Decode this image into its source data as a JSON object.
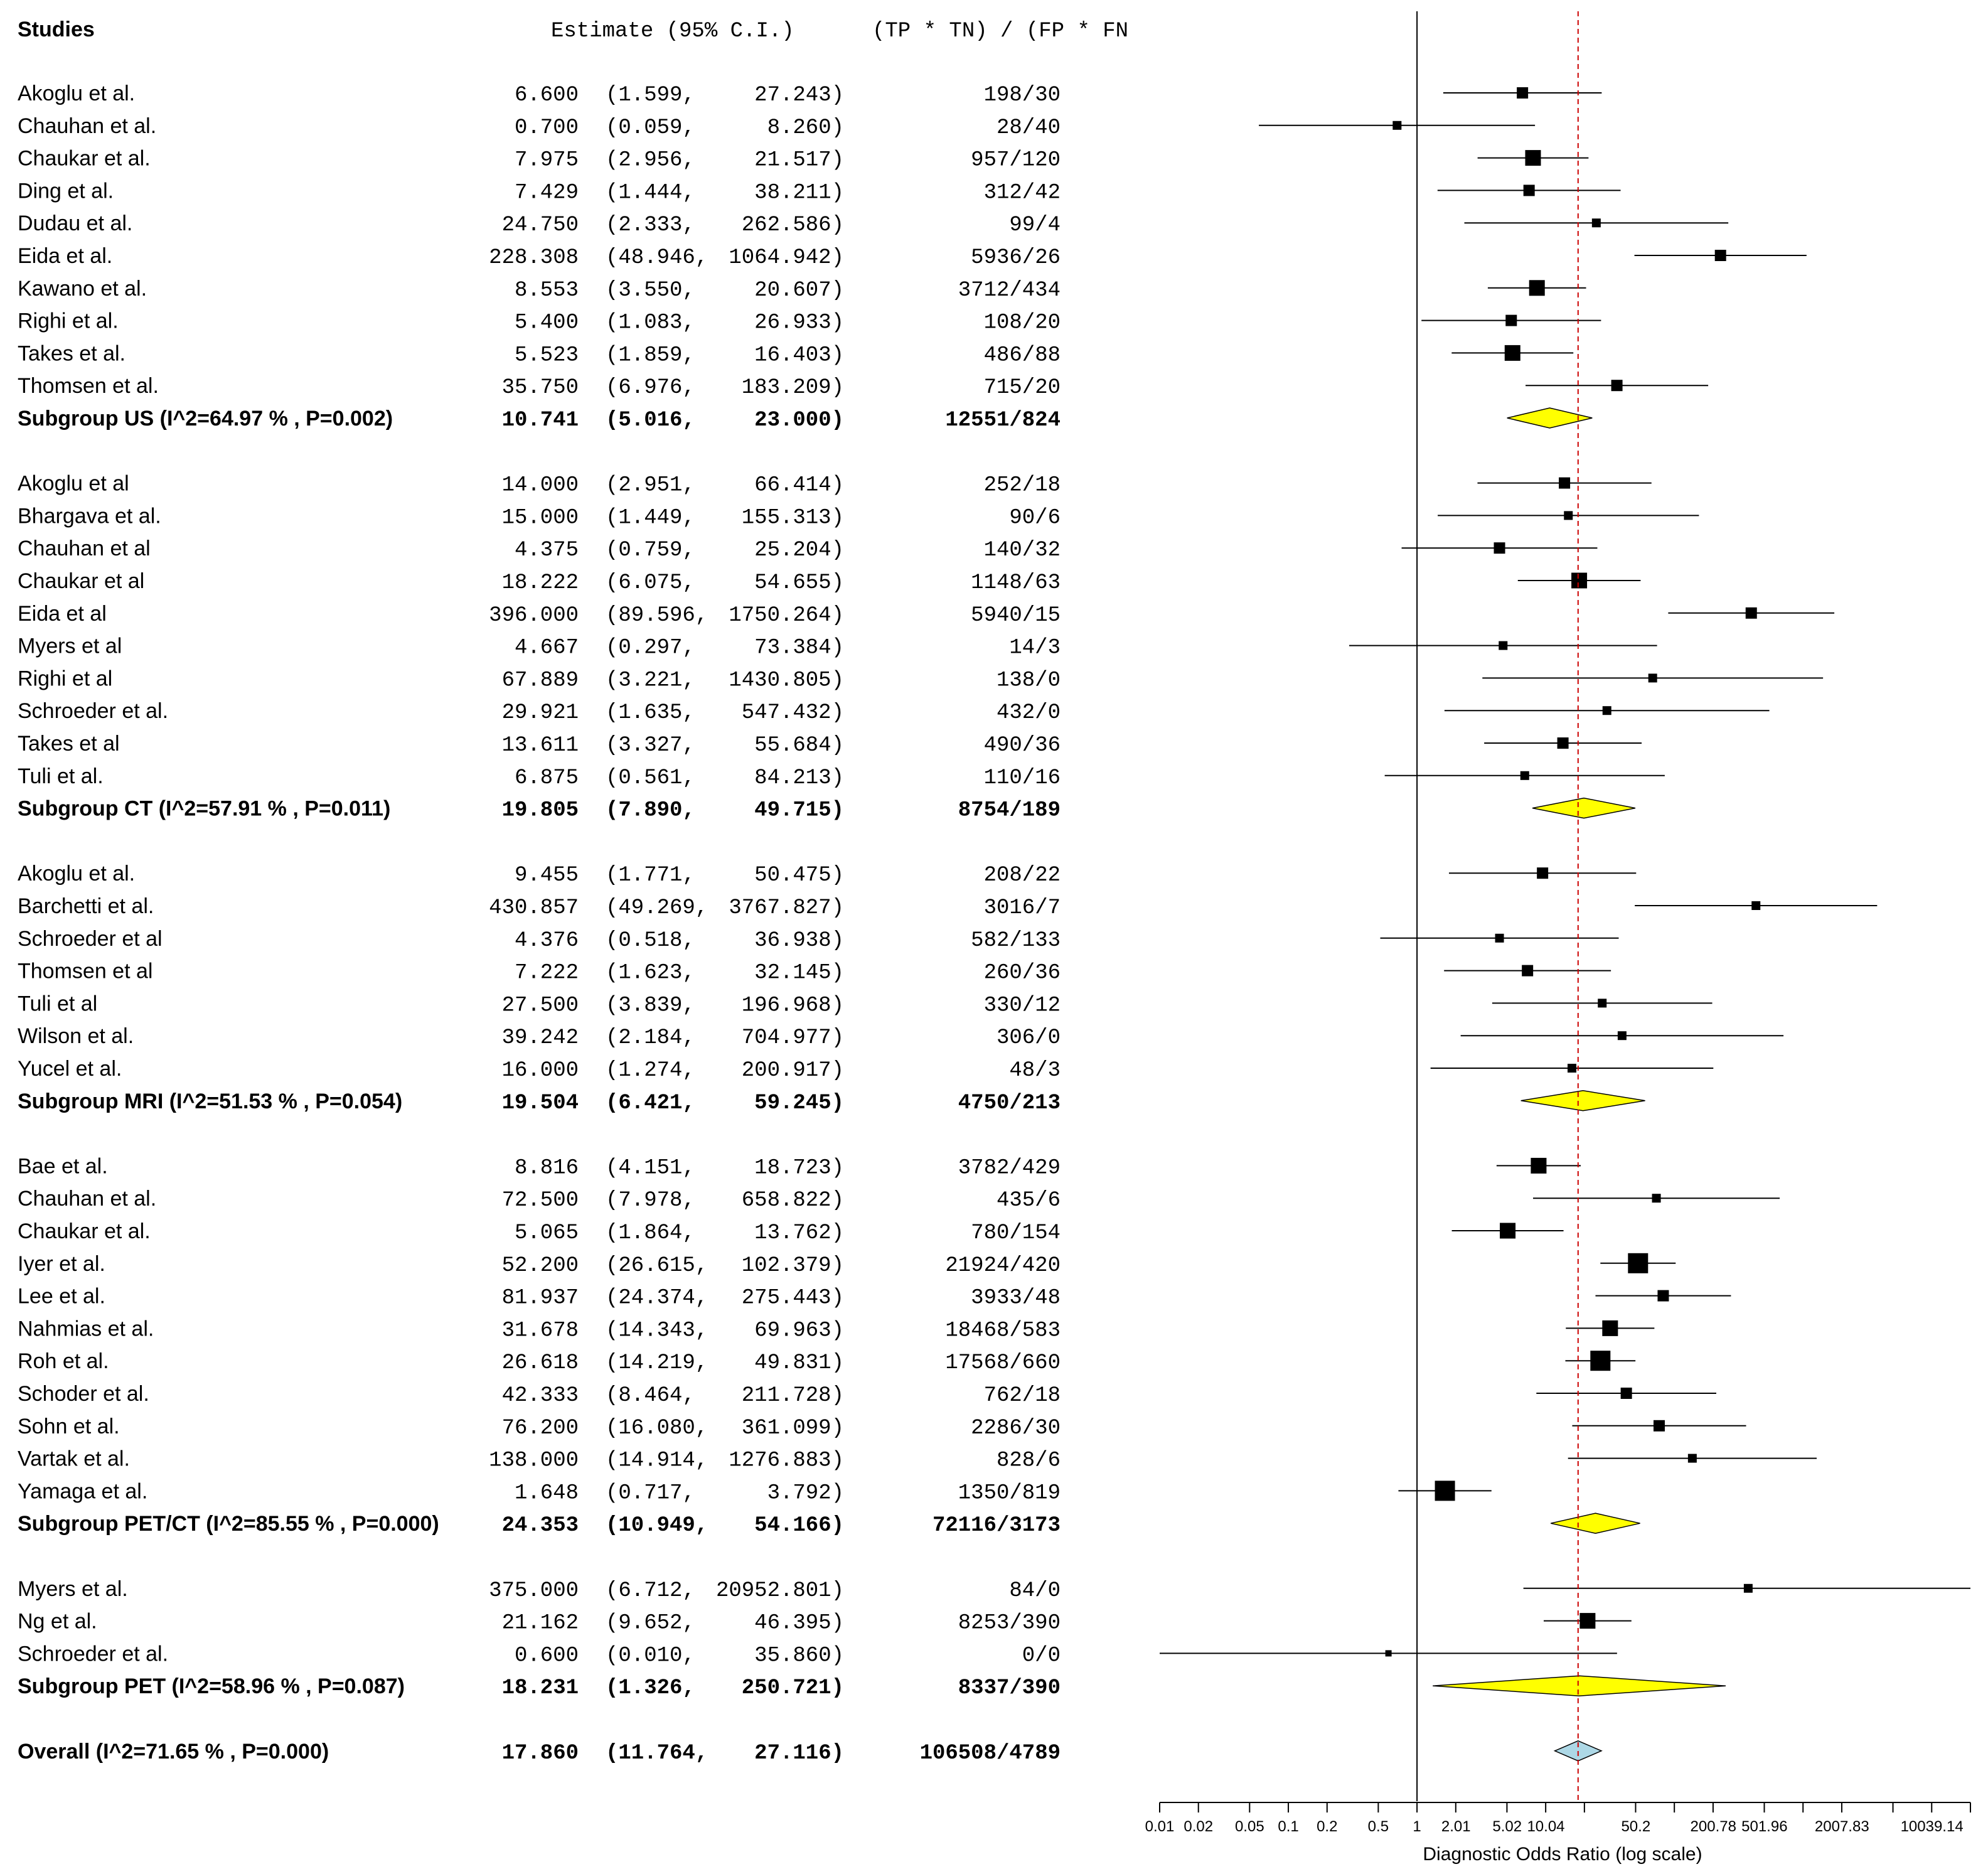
{
  "chart_data": {
    "type": "forest",
    "headers": {
      "studies": "Studies",
      "estimate": "Estimate (95% C.I.)",
      "ratio": "(TP * TN) / (FP * FN"
    },
    "xlabel": "Diagnostic Odds Ratio (log scale)",
    "xticks": [
      "0.01",
      "0.02",
      "0.05",
      "0.1",
      "0.2",
      "0.5",
      "1",
      "2.01",
      "5.02",
      "10.04",
      "50.2",
      "200.78",
      "501.96",
      "2007.83",
      "10039.14"
    ],
    "xlim": [
      0.01,
      20000
    ],
    "reference_line": 1,
    "pooled_line": 17.86,
    "groups": [
      {
        "studies": [
          {
            "name": "Akoglu et al.",
            "est": "6.600",
            "lo": "(1.599,",
            "hi": "27.243)",
            "ratio": "198/30",
            "w": 2
          },
          {
            "name": "Chauhan et al.",
            "est": "0.700",
            "lo": "(0.059,",
            "hi": "8.260)",
            "ratio": "28/40",
            "w": 1
          },
          {
            "name": "Chaukar et al.",
            "est": "7.975",
            "lo": "(2.956,",
            "hi": "21.517)",
            "ratio": "957/120",
            "w": 3
          },
          {
            "name": "Ding et al.",
            "est": "7.429",
            "lo": "(1.444,",
            "hi": "38.211)",
            "ratio": "312/42",
            "w": 2
          },
          {
            "name": "Dudau et al.",
            "est": "24.750",
            "lo": "(2.333,",
            "hi": "262.586)",
            "ratio": "99/4",
            "w": 1
          },
          {
            "name": "Eida et al.",
            "est": "228.308",
            "lo": "(48.946,",
            "hi": "1064.942)",
            "ratio": "5936/26",
            "w": 2
          },
          {
            "name": "Kawano et al.",
            "est": "8.553",
            "lo": "(3.550,",
            "hi": "20.607)",
            "ratio": "3712/434",
            "w": 3
          },
          {
            "name": "Righi et al.",
            "est": "5.400",
            "lo": "(1.083,",
            "hi": "26.933)",
            "ratio": "108/20",
            "w": 2
          },
          {
            "name": "Takes et al.",
            "est": "5.523",
            "lo": "(1.859,",
            "hi": "16.403)",
            "ratio": "486/88",
            "w": 3
          },
          {
            "name": "Thomsen et al.",
            "est": "35.750",
            "lo": "(6.976,",
            "hi": "183.209)",
            "ratio": "715/20",
            "w": 2
          }
        ],
        "summary": {
          "name": "Subgroup US (I^2=64.97 % , P=0.002)",
          "est": "10.741",
          "lo": "(5.016,",
          "hi": "23.000)",
          "ratio": "12551/824"
        }
      },
      {
        "studies": [
          {
            "name": "Akoglu et al",
            "est": "14.000",
            "lo": "(2.951,",
            "hi": "66.414)",
            "ratio": "252/18",
            "w": 2
          },
          {
            "name": "Bhargava et al.",
            "est": "15.000",
            "lo": "(1.449,",
            "hi": "155.313)",
            "ratio": "90/6",
            "w": 1
          },
          {
            "name": "Chauhan et al",
            "est": "4.375",
            "lo": "(0.759,",
            "hi": "25.204)",
            "ratio": "140/32",
            "w": 2
          },
          {
            "name": "Chaukar et al",
            "est": "18.222",
            "lo": "(6.075,",
            "hi": "54.655)",
            "ratio": "1148/63",
            "w": 3
          },
          {
            "name": "Eida et al",
            "est": "396.000",
            "lo": "(89.596,",
            "hi": "1750.264)",
            "ratio": "5940/15",
            "w": 2
          },
          {
            "name": "Myers et al",
            "est": "4.667",
            "lo": "(0.297,",
            "hi": "73.384)",
            "ratio": "14/3",
            "w": 1
          },
          {
            "name": "Righi et al",
            "est": "67.889",
            "lo": "(3.221,",
            "hi": "1430.805)",
            "ratio": "138/0",
            "w": 1
          },
          {
            "name": "Schroeder et al.",
            "est": "29.921",
            "lo": "(1.635,",
            "hi": "547.432)",
            "ratio": "432/0",
            "w": 1
          },
          {
            "name": "Takes et al",
            "est": "13.611",
            "lo": "(3.327,",
            "hi": "55.684)",
            "ratio": "490/36",
            "w": 2
          },
          {
            "name": "Tuli et al.",
            "est": "6.875",
            "lo": "(0.561,",
            "hi": "84.213)",
            "ratio": "110/16",
            "w": 1
          }
        ],
        "summary": {
          "name": "Subgroup CT (I^2=57.91 % , P=0.011)",
          "est": "19.805",
          "lo": "(7.890,",
          "hi": "49.715)",
          "ratio": "8754/189"
        }
      },
      {
        "studies": [
          {
            "name": "Akoglu et al.",
            "est": "9.455",
            "lo": "(1.771,",
            "hi": "50.475)",
            "ratio": "208/22",
            "w": 2
          },
          {
            "name": "Barchetti et al.",
            "est": "430.857",
            "lo": "(49.269,",
            "hi": "3767.827)",
            "ratio": "3016/7",
            "w": 1
          },
          {
            "name": "Schroeder et al",
            "est": "4.376",
            "lo": "(0.518,",
            "hi": "36.938)",
            "ratio": "582/133",
            "w": 1
          },
          {
            "name": "Thomsen et al",
            "est": "7.222",
            "lo": "(1.623,",
            "hi": "32.145)",
            "ratio": "260/36",
            "w": 2
          },
          {
            "name": "Tuli et al",
            "est": "27.500",
            "lo": "(3.839,",
            "hi": "196.968)",
            "ratio": "330/12",
            "w": 1
          },
          {
            "name": "Wilson et al.",
            "est": "39.242",
            "lo": "(2.184,",
            "hi": "704.977)",
            "ratio": "306/0",
            "w": 1
          },
          {
            "name": "Yucel et al.",
            "est": "16.000",
            "lo": "(1.274,",
            "hi": "200.917)",
            "ratio": "48/3",
            "w": 1
          }
        ],
        "summary": {
          "name": "Subgroup MRI  (I^2=51.53 % , P=0.054)",
          "est": "19.504",
          "lo": "(6.421,",
          "hi": "59.245)",
          "ratio": "4750/213"
        }
      },
      {
        "studies": [
          {
            "name": "Bae et al.",
            "est": "8.816",
            "lo": "(4.151,",
            "hi": "18.723)",
            "ratio": "3782/429",
            "w": 3
          },
          {
            "name": "Chauhan et al.",
            "est": "72.500",
            "lo": "(7.978,",
            "hi": "658.822)",
            "ratio": "435/6",
            "w": 1
          },
          {
            "name": "Chaukar et al.",
            "est": "5.065",
            "lo": "(1.864,",
            "hi": "13.762)",
            "ratio": "780/154",
            "w": 3
          },
          {
            "name": "Iyer et al.",
            "est": "52.200",
            "lo": "(26.615,",
            "hi": "102.379)",
            "ratio": "21924/420",
            "w": 4
          },
          {
            "name": "Lee et al.",
            "est": "81.937",
            "lo": "(24.374,",
            "hi": "275.443)",
            "ratio": "3933/48",
            "w": 2
          },
          {
            "name": "Nahmias et al.",
            "est": "31.678",
            "lo": "(14.343,",
            "hi": "69.963)",
            "ratio": "18468/583",
            "w": 3
          },
          {
            "name": "Roh et al.",
            "est": "26.618",
            "lo": "(14.219,",
            "hi": "49.831)",
            "ratio": "17568/660",
            "w": 4
          },
          {
            "name": "Schoder et al.",
            "est": "42.333",
            "lo": "(8.464,",
            "hi": "211.728)",
            "ratio": "762/18",
            "w": 2
          },
          {
            "name": "Sohn et al.",
            "est": "76.200",
            "lo": "(16.080,",
            "hi": "361.099)",
            "ratio": "2286/30",
            "w": 2
          },
          {
            "name": "Vartak et al.",
            "est": "138.000",
            "lo": "(14.914,",
            "hi": "1276.883)",
            "ratio": "828/6",
            "w": 1
          },
          {
            "name": "Yamaga et al.",
            "est": "1.648",
            "lo": "(0.717,",
            "hi": "3.792)",
            "ratio": "1350/819",
            "w": 4
          }
        ],
        "summary": {
          "name": "Subgroup PET/CT (I^2=85.55 % , P=0.000)",
          "est": "24.353",
          "lo": "(10.949,",
          "hi": "54.166)",
          "ratio": "72116/3173"
        }
      },
      {
        "studies": [
          {
            "name": "Myers et al.",
            "est": "375.000",
            "lo": "(6.712,",
            "hi": "20952.801)",
            "ratio": "84/0",
            "w": 1
          },
          {
            "name": "Ng et al.",
            "est": "21.162",
            "lo": "(9.652,",
            "hi": "46.395)",
            "ratio": "8253/390",
            "w": 3
          },
          {
            "name": "Schroeder et al.",
            "est": "0.600",
            "lo": "(0.010,",
            "hi": "35.860)",
            "ratio": "0/0",
            "w": 0
          }
        ],
        "summary": {
          "name": "Subgroup PET (I^2=58.96 % , P=0.087)",
          "est": "18.231",
          "lo": "(1.326,",
          "hi": "250.721)",
          "ratio": "8337/390"
        }
      }
    ],
    "overall": {
      "name": "Overall (I^2=71.65 % , P=0.000)",
      "est": "17.860",
      "lo": "(11.764,",
      "hi": "27.116)",
      "ratio": "106508/4789"
    },
    "colors": {
      "subgroup_diamond": "#ffff00",
      "overall_diamond": "#add8e6",
      "pooled_line": "#cc0000"
    }
  }
}
